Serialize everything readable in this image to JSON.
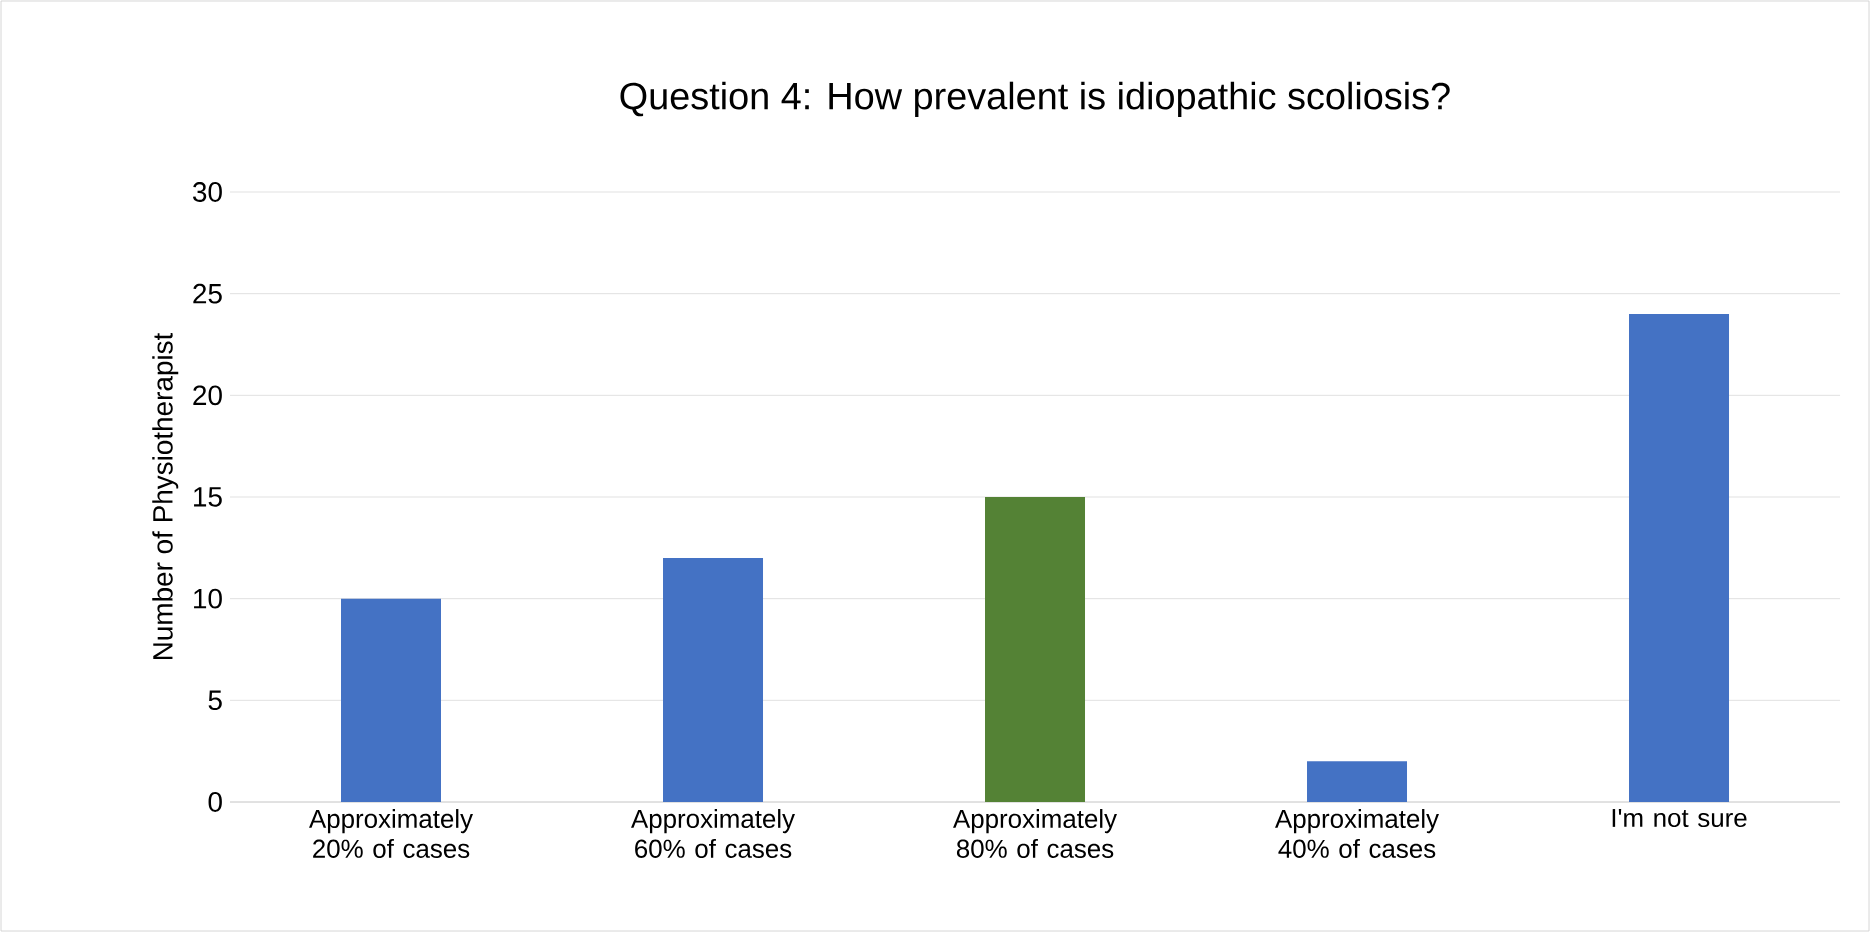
{
  "chart_data": {
    "type": "bar",
    "title": "Question 4: How prevalent is idiopathic scoliosis?",
    "ylabel": "Number of Physiotherapist",
    "categories": [
      "Approximately 20% of cases",
      "Approximately 60% of cases",
      "Approximately 80% of cases",
      "Approximately 40% of cases",
      "I'm not sure"
    ],
    "values": [
      10,
      12,
      15,
      2,
      24
    ],
    "colors": [
      "#4472c4",
      "#4472c4",
      "#548235",
      "#4472c4",
      "#4472c4"
    ],
    "ylim": [
      0,
      30
    ],
    "yticks": [
      0,
      5,
      10,
      15,
      20,
      25,
      30
    ],
    "grid": "y"
  }
}
